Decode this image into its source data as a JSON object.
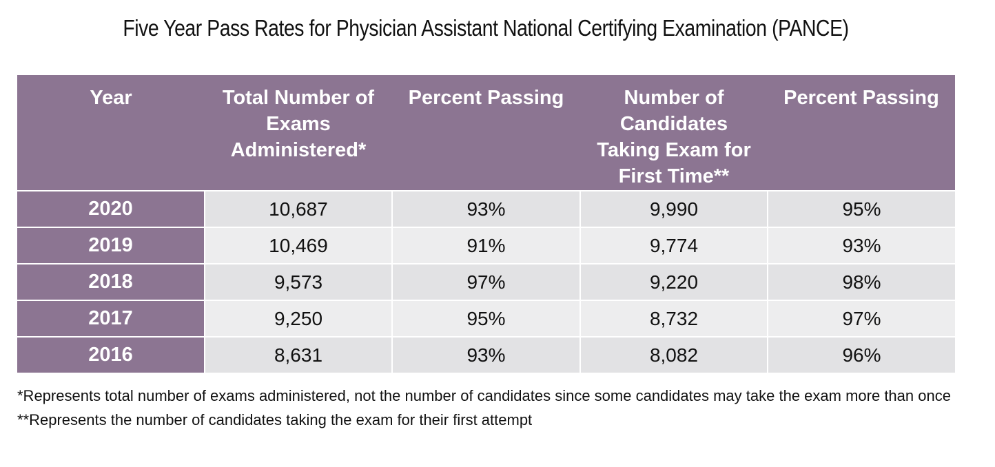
{
  "title": "Five Year Pass Rates for Physician Assistant National Certifying Examination (PANCE)",
  "table": {
    "headers": [
      "Year",
      "Total Number of Exams Administered*",
      "Percent Passing",
      "Number of Candidates Taking Exam for First Time**",
      "Percent Passing"
    ],
    "header_lines": [
      [
        "Year"
      ],
      [
        "Total Number of",
        "Exams",
        "Administered*"
      ],
      [
        "Percent Passing"
      ],
      [
        "Number of",
        "Candidates",
        "Taking Exam for",
        "First Time**"
      ],
      [
        "Percent Passing"
      ]
    ],
    "rows": [
      [
        "2020",
        "10,687",
        "93%",
        "9,990",
        "95%"
      ],
      [
        "2019",
        "10,469",
        "91%",
        "9,774",
        "93%"
      ],
      [
        "2018",
        "9,573",
        "97%",
        "9,220",
        "98%"
      ],
      [
        "2017",
        "9,250",
        "95%",
        "8,732",
        "97%"
      ],
      [
        "2016",
        "8,631",
        "93%",
        "8,082",
        "96%"
      ]
    ]
  },
  "footnotes": [
    "*Represents total number of exams administered, not the number of candidates since some candidates may take the exam more than once",
    "**Represents the number of candidates taking the exam for their first attempt"
  ],
  "colors": {
    "header_bg": "#8c7592",
    "header_text": "#ffffff",
    "row_bg_odd": "#e2e2e4",
    "row_bg_even": "#ededee"
  }
}
